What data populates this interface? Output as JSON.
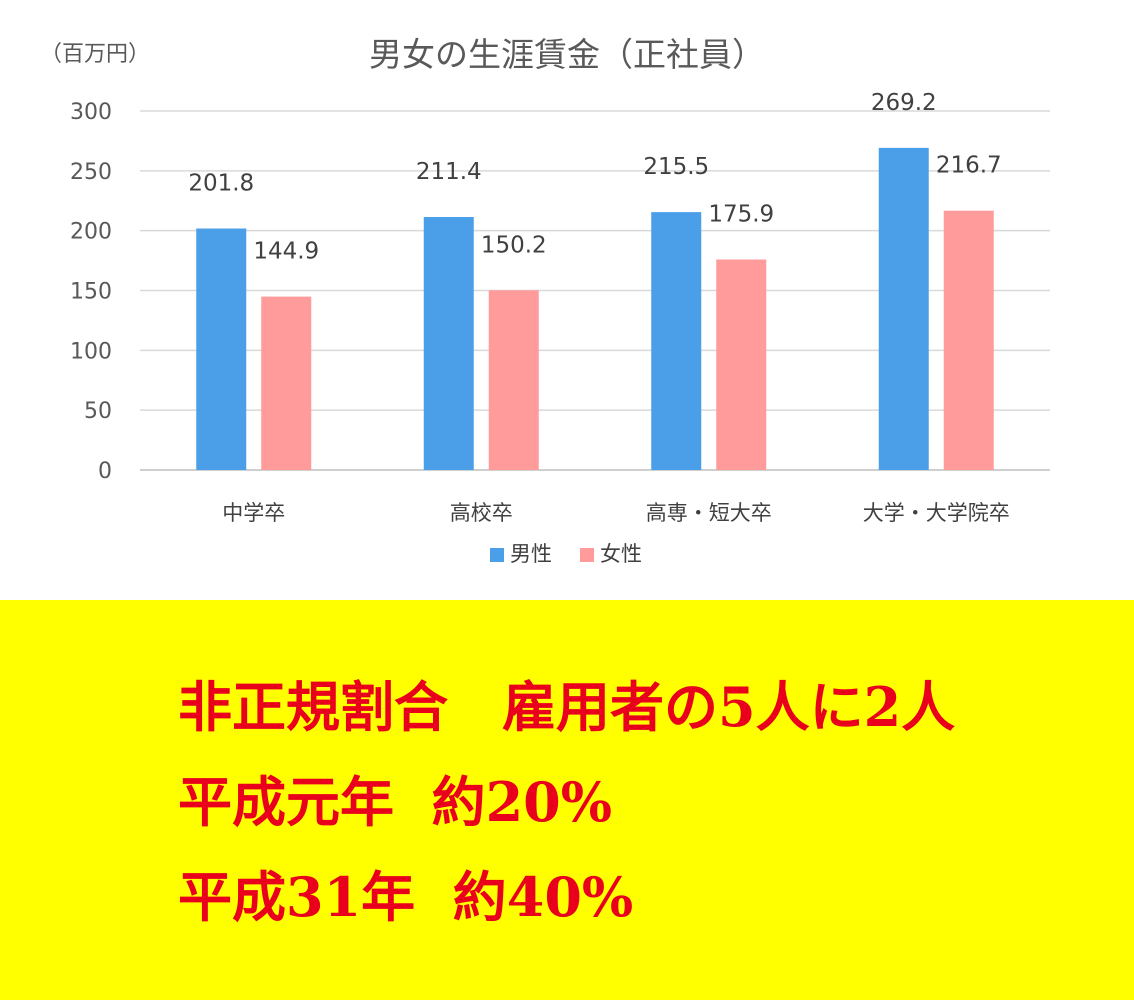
{
  "chart_data": {
    "type": "bar",
    "title": "男女の生涯賃金（正社員）",
    "unit_label": "（百万円）",
    "categories": [
      "中学卒",
      "高校卒",
      "高専・短大卒",
      "大学・大学院卒"
    ],
    "series": [
      {
        "name": "男性",
        "color": "#4a9fe8",
        "values": [
          201.8,
          211.4,
          215.5,
          269.2
        ]
      },
      {
        "name": "女性",
        "color": "#ff9b9b",
        "values": [
          144.9,
          150.2,
          175.9,
          216.7
        ]
      }
    ],
    "ylim": [
      0,
      300
    ],
    "yticks": [
      0,
      50,
      100,
      150,
      200,
      250,
      300
    ],
    "grid": true,
    "legend_position": "bottom"
  },
  "banner": {
    "background": "#ffff00",
    "text_color": "#e8001c",
    "lines": [
      "非正規割合　雇用者の5人に2人",
      "平成元年  約20%",
      "平成31年  約40%"
    ]
  }
}
